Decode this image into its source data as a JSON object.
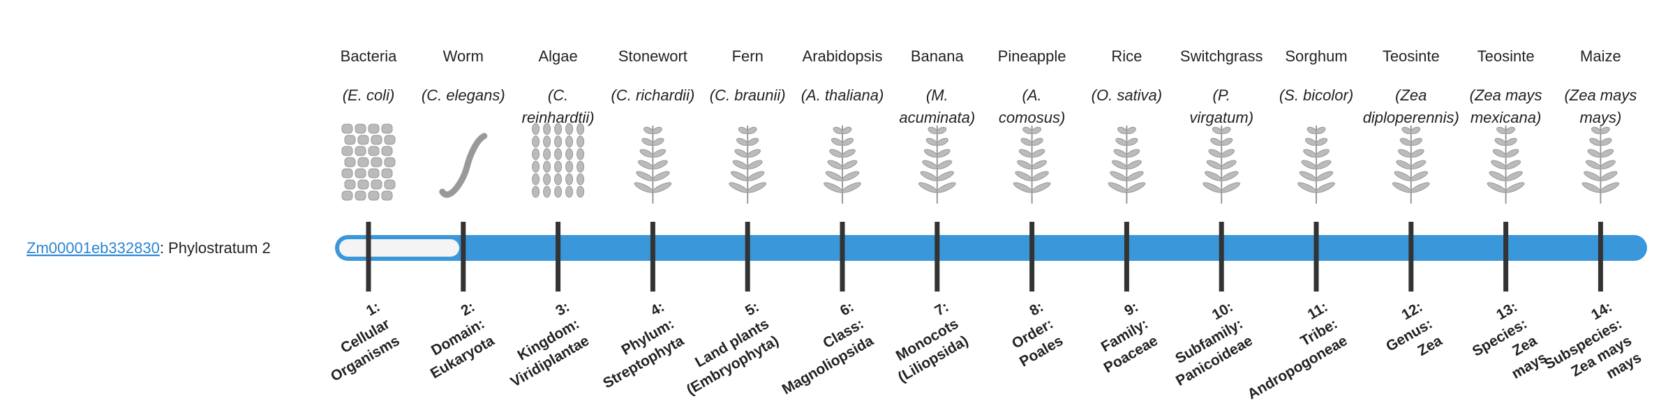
{
  "gene": {
    "id": "Zm00001eb332830",
    "suffix": ": Phylostratum 2"
  },
  "strata": [
    {
      "name": "Bacteria",
      "species": [
        "(E. coli)"
      ],
      "label": [
        "1:",
        "Cellular",
        "Organisms"
      ]
    },
    {
      "name": "Worm",
      "species": [
        "(C. elegans)"
      ],
      "label": [
        "2:",
        "Domain:",
        "Eukaryota"
      ]
    },
    {
      "name": "Algae",
      "species": [
        "(C.",
        "reinhardtii)"
      ],
      "label": [
        "3:",
        "Kingdom:",
        "Viridiplantae"
      ]
    },
    {
      "name": "Stonewort",
      "species": [
        "(C. richardii)"
      ],
      "label": [
        "4:",
        "Phylum:",
        "Streptophyta"
      ]
    },
    {
      "name": "Fern",
      "species": [
        "(C. braunii)"
      ],
      "label": [
        "5:",
        "Land plants",
        "(Embryophyta)"
      ]
    },
    {
      "name": "Arabidopsis",
      "species": [
        "(A. thaliana)"
      ],
      "label": [
        "6:",
        "Class:",
        "Magnoliopsida"
      ]
    },
    {
      "name": "Banana",
      "species": [
        "(M.",
        "acuminata)"
      ],
      "label": [
        "7:",
        "Monocots",
        "(Liliopsida)"
      ]
    },
    {
      "name": "Pineapple",
      "species": [
        "(A.",
        "comosus)"
      ],
      "label": [
        "8:",
        "Order:",
        "Poales"
      ]
    },
    {
      "name": "Rice",
      "species": [
        "(O. sativa)"
      ],
      "label": [
        "9:",
        "Family:",
        "Poaceae"
      ]
    },
    {
      "name": "Switchgrass",
      "species": [
        "(P.",
        "virgatum)"
      ],
      "label": [
        "10:",
        "Subfamily:",
        "Panicoideae"
      ]
    },
    {
      "name": "Sorghum",
      "species": [
        "(S. bicolor)"
      ],
      "label": [
        "11:",
        "Tribe:",
        "Andropogoneae"
      ]
    },
    {
      "name": "Teosinte",
      "species": [
        "(Zea",
        "diploperennis)"
      ],
      "label": [
        "12:",
        "Genus:",
        "Zea"
      ]
    },
    {
      "name": "Teosinte",
      "species": [
        "(Zea mays",
        "mexicana)"
      ],
      "label": [
        "13:",
        "Species:",
        "Zea",
        "mays"
      ]
    },
    {
      "name": "Maize",
      "species": [
        "(Zea mays",
        "mays)"
      ],
      "label": [
        "14:",
        "Subspecies:",
        "Zea mays",
        "mays"
      ]
    }
  ]
}
